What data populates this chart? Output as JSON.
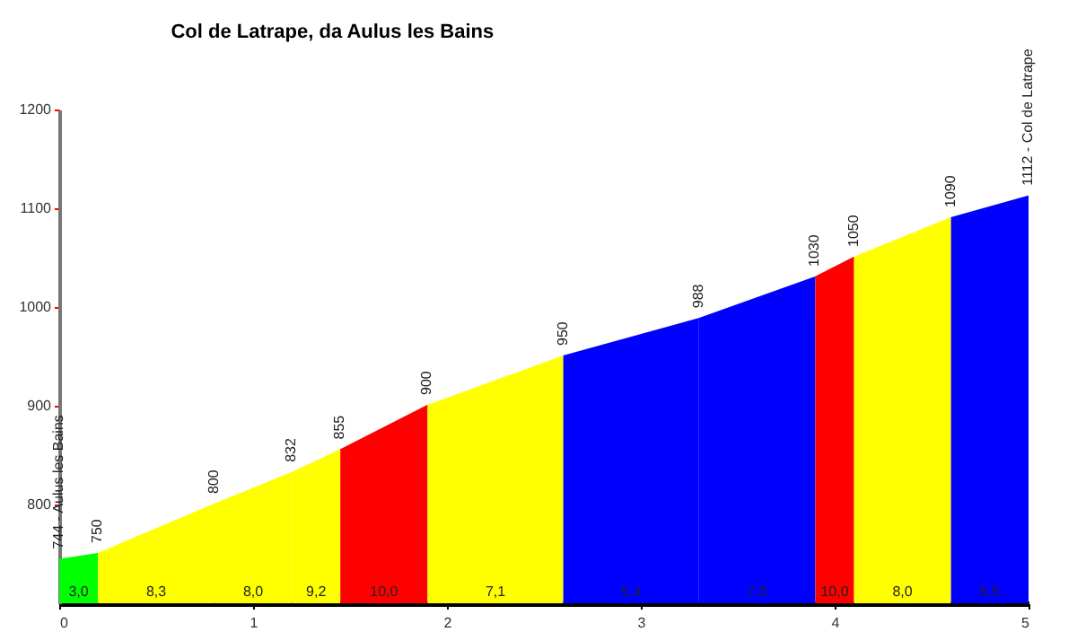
{
  "chart_data": {
    "type": "area",
    "title": "Col de Latrape, da Aulus les Bains",
    "series": [
      {
        "color": "#00ff00",
        "x": [
          0,
          0.2
        ],
        "values": [
          744,
          750
        ]
      },
      {
        "color": "#ffff00",
        "x": [
          0.2,
          0.8
        ],
        "values": [
          750,
          800
        ]
      },
      {
        "color": "#ffff00",
        "x": [
          0.8,
          1.2
        ],
        "values": [
          800,
          832
        ]
      },
      {
        "color": "#ffff00",
        "x": [
          1.2,
          1.45
        ],
        "values": [
          832,
          855
        ]
      },
      {
        "color": "#ff0000",
        "x": [
          1.45,
          1.9
        ],
        "values": [
          855,
          900
        ]
      },
      {
        "color": "#ffff00",
        "x": [
          1.9,
          2.6
        ],
        "values": [
          900,
          950
        ]
      },
      {
        "color": "#0000ff",
        "x": [
          2.6,
          3.3
        ],
        "values": [
          950,
          988
        ]
      },
      {
        "color": "#0000ff",
        "x": [
          3.3,
          3.9
        ],
        "values": [
          988,
          1030
        ]
      },
      {
        "color": "#ff0000",
        "x": [
          3.9,
          4.1
        ],
        "values": [
          1030,
          1050
        ]
      },
      {
        "color": "#ffff00",
        "x": [
          4.1,
          4.6
        ],
        "values": [
          1050,
          1090
        ]
      },
      {
        "color": "#0000ff",
        "x": [
          4.6,
          5
        ],
        "values": [
          1090,
          1112
        ]
      }
    ],
    "annotations": [
      "3,0",
      "8,3",
      "8,0",
      "9,2",
      "10,0",
      "7,1",
      "5,4",
      "7,0",
      "10,0",
      "8,0",
      "5,5",
      {
        "text": "744 - Aulus les Bains",
        "x": 0,
        "y": 744
      },
      {
        "text": "750",
        "x": 0.2,
        "y": 750
      },
      {
        "text": "800",
        "x": 0.8,
        "y": 800
      },
      {
        "text": "832",
        "x": 1.2,
        "y": 832
      },
      {
        "text": "855",
        "x": 1.45,
        "y": 855
      },
      {
        "text": "900",
        "x": 1.9,
        "y": 900
      },
      {
        "text": "950",
        "x": 2.6,
        "y": 950
      },
      {
        "text": "988",
        "x": 3.3,
        "y": 988
      },
      {
        "text": "1030",
        "x": 3.9,
        "y": 1030
      },
      {
        "text": "1050",
        "x": 4.1,
        "y": 1050
      },
      {
        "text": "1090",
        "x": 4.6,
        "y": 1090
      },
      {
        "text": "1112 - Col de Latrape",
        "x": 5,
        "y": 1112
      }
    ],
    "xlim": [
      0,
      5
    ],
    "xticks": [
      0,
      1,
      2,
      3,
      4,
      5
    ],
    "ylim": [
      700,
      1200
    ],
    "yticks": [
      800,
      900,
      1000,
      1100,
      1200
    ],
    "grid": false,
    "legend": false
  }
}
